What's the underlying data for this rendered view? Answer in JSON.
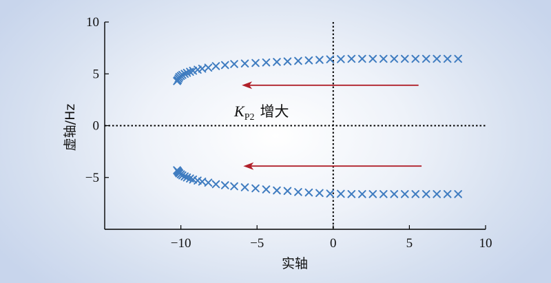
{
  "chart_data": {
    "type": "scatter",
    "title": "",
    "xlabel": "实轴",
    "ylabel": "虚轴/Hz",
    "xlim": [
      -15,
      10
    ],
    "ylim": [
      -10,
      10
    ],
    "xticks": [
      -10,
      -5,
      0,
      5,
      10
    ],
    "yticks": [
      -5,
      0,
      5,
      10
    ],
    "xtick_labels": [
      "−10",
      "−5",
      "0",
      "5",
      "10"
    ],
    "ytick_labels": [
      "−5",
      "0",
      "5",
      "10"
    ],
    "grid": false,
    "reference_lines": [
      "x = 0 (dotted)",
      "y = 0 (dotted)"
    ],
    "marker": "x",
    "marker_color": "#3f7cc0",
    "arrow_color": "#b0202a",
    "annotation": {
      "italic": "K",
      "sub": "P2",
      "text": "增大"
    },
    "arrows": [
      {
        "from": [
          5.6,
          3.9
        ],
        "to": [
          -6.0,
          3.9
        ]
      },
      {
        "from": [
          5.8,
          -3.9
        ],
        "to": [
          -5.9,
          -3.9
        ]
      }
    ],
    "series": [
      {
        "points": [
          [
            8.2,
            6.45
          ],
          [
            7.5,
            6.45
          ],
          [
            6.8,
            6.45
          ],
          [
            6.1,
            6.45
          ],
          [
            5.4,
            6.45
          ],
          [
            4.7,
            6.45
          ],
          [
            4.0,
            6.45
          ],
          [
            3.3,
            6.45
          ],
          [
            2.6,
            6.45
          ],
          [
            1.9,
            6.45
          ],
          [
            1.2,
            6.45
          ],
          [
            0.5,
            6.42
          ],
          [
            -0.2,
            6.4
          ],
          [
            -0.9,
            6.35
          ],
          [
            -1.6,
            6.3
          ],
          [
            -2.3,
            6.25
          ],
          [
            -3.0,
            6.2
          ],
          [
            -3.7,
            6.15
          ],
          [
            -4.4,
            6.1
          ],
          [
            -5.1,
            6.05
          ],
          [
            -5.8,
            6.0
          ],
          [
            -6.5,
            5.95
          ],
          [
            -7.1,
            5.85
          ],
          [
            -7.7,
            5.75
          ],
          [
            -8.2,
            5.6
          ],
          [
            -8.6,
            5.5
          ],
          [
            -8.9,
            5.4
          ],
          [
            -9.2,
            5.3
          ],
          [
            -9.4,
            5.2
          ],
          [
            -9.6,
            5.1
          ],
          [
            -9.75,
            5.0
          ],
          [
            -9.9,
            4.9
          ],
          [
            -10.0,
            4.8
          ],
          [
            -10.1,
            4.7
          ],
          [
            -10.15,
            4.55
          ],
          [
            -10.2,
            4.4
          ],
          [
            -10.25,
            4.3
          ]
        ]
      },
      {
        "points": [
          [
            8.2,
            -6.6
          ],
          [
            7.5,
            -6.6
          ],
          [
            6.8,
            -6.6
          ],
          [
            6.1,
            -6.6
          ],
          [
            5.4,
            -6.6
          ],
          [
            4.7,
            -6.6
          ],
          [
            4.0,
            -6.6
          ],
          [
            3.3,
            -6.6
          ],
          [
            2.6,
            -6.6
          ],
          [
            1.9,
            -6.6
          ],
          [
            1.2,
            -6.6
          ],
          [
            0.5,
            -6.58
          ],
          [
            -0.2,
            -6.55
          ],
          [
            -0.9,
            -6.5
          ],
          [
            -1.6,
            -6.45
          ],
          [
            -2.3,
            -6.4
          ],
          [
            -3.0,
            -6.3
          ],
          [
            -3.7,
            -6.25
          ],
          [
            -4.4,
            -6.15
          ],
          [
            -5.1,
            -6.05
          ],
          [
            -5.8,
            -5.95
          ],
          [
            -6.5,
            -5.85
          ],
          [
            -7.1,
            -5.75
          ],
          [
            -7.7,
            -5.65
          ],
          [
            -8.2,
            -5.5
          ],
          [
            -8.6,
            -5.4
          ],
          [
            -8.9,
            -5.3
          ],
          [
            -9.2,
            -5.2
          ],
          [
            -9.4,
            -5.1
          ],
          [
            -9.6,
            -5.0
          ],
          [
            -9.75,
            -4.9
          ],
          [
            -9.9,
            -4.8
          ],
          [
            -10.0,
            -4.7
          ],
          [
            -10.1,
            -4.6
          ],
          [
            -10.15,
            -4.5
          ],
          [
            -10.2,
            -4.4
          ],
          [
            -10.25,
            -4.3
          ]
        ]
      }
    ]
  }
}
